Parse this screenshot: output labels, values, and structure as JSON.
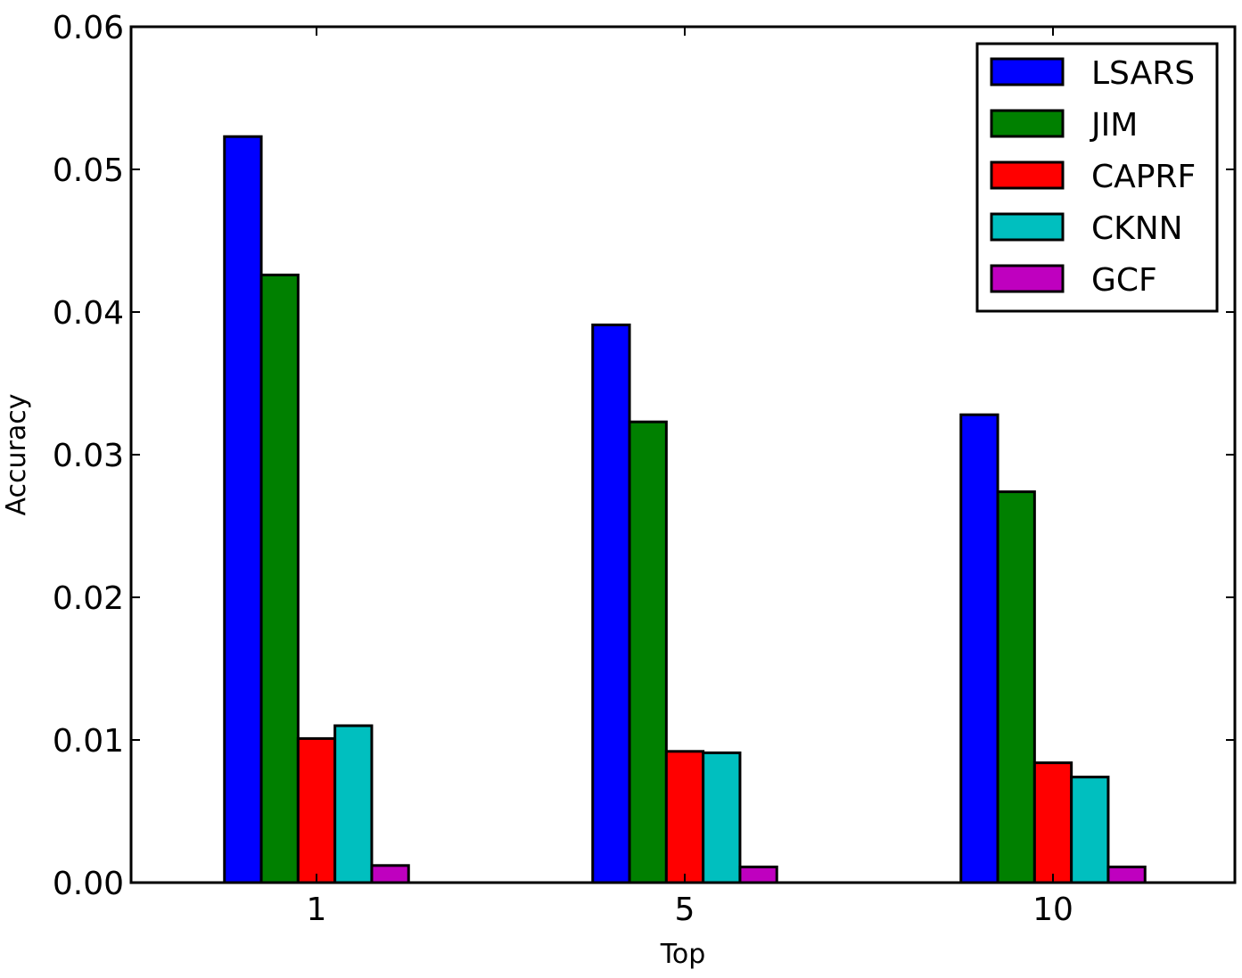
{
  "chart_data": {
    "type": "bar",
    "title": "",
    "xlabel": "Top",
    "ylabel": "Accuracy",
    "categories": [
      "1",
      "5",
      "10"
    ],
    "ylim": [
      0,
      0.06
    ],
    "yticks": [
      "0.00",
      "0.01",
      "0.02",
      "0.03",
      "0.04",
      "0.05",
      "0.06"
    ],
    "grid": false,
    "legend_position": "top-right",
    "series": [
      {
        "name": "LSARS",
        "color": "#0000ff",
        "values": [
          0.0523,
          0.0391,
          0.0328
        ]
      },
      {
        "name": "JIM",
        "color": "#008000",
        "values": [
          0.0426,
          0.0323,
          0.0274
        ]
      },
      {
        "name": "CAPRF",
        "color": "#ff0000",
        "values": [
          0.0101,
          0.0092,
          0.0084
        ]
      },
      {
        "name": "CKNN",
        "color": "#00bfbf",
        "values": [
          0.011,
          0.0091,
          0.0074
        ]
      },
      {
        "name": "GCF",
        "color": "#bf00bf",
        "values": [
          0.0012,
          0.0011,
          0.0011
        ]
      }
    ]
  }
}
